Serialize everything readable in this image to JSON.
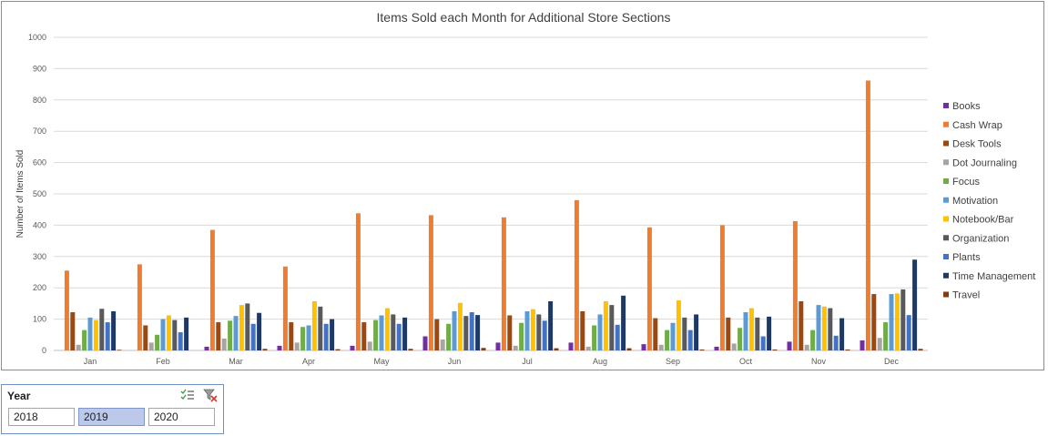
{
  "chart_data": {
    "type": "bar",
    "title": "Items Sold each Month for Additional Store Sections",
    "xlabel": "",
    "ylabel": "Number of Items Sold",
    "ylim": [
      0,
      1000
    ],
    "yticks": [
      0,
      100,
      200,
      300,
      400,
      500,
      600,
      700,
      800,
      900,
      1000
    ],
    "grid": true,
    "legend_position": "right",
    "categories": [
      "Jan",
      "Feb",
      "Mar",
      "Apr",
      "May",
      "Jun",
      "Jul",
      "Aug",
      "Sep",
      "Oct",
      "Nov",
      "Dec"
    ],
    "series": [
      {
        "name": "Books",
        "color": "#7030a0",
        "values": [
          0,
          0,
          12,
          15,
          15,
          45,
          25,
          25,
          20,
          12,
          28,
          32
        ]
      },
      {
        "name": "Cash Wrap",
        "color": "#ed7d31",
        "values": [
          255,
          275,
          385,
          268,
          438,
          432,
          425,
          480,
          393,
          400,
          413,
          862
        ]
      },
      {
        "name": "Desk Tools",
        "color": "#9e480e",
        "values": [
          122,
          80,
          90,
          90,
          90,
          100,
          112,
          125,
          103,
          105,
          157,
          180
        ]
      },
      {
        "name": "Dot Journaling",
        "color": "#a5a5a5",
        "values": [
          18,
          25,
          38,
          25,
          28,
          35,
          15,
          12,
          18,
          22,
          18,
          40
        ]
      },
      {
        "name": "Focus",
        "color": "#70ad47",
        "values": [
          65,
          50,
          95,
          75,
          97,
          85,
          88,
          80,
          65,
          72,
          65,
          90
        ]
      },
      {
        "name": "Motivation",
        "color": "#5b9bd5",
        "values": [
          105,
          100,
          110,
          80,
          112,
          125,
          125,
          115,
          88,
          122,
          145,
          180
        ]
      },
      {
        "name": "Notebook/Bar",
        "color": "#ffc000",
        "values": [
          97,
          112,
          145,
          157,
          135,
          152,
          132,
          157,
          160,
          135,
          140,
          182
        ]
      },
      {
        "name": "Organization",
        "color": "#595959",
        "values": [
          133,
          97,
          150,
          140,
          115,
          110,
          115,
          145,
          105,
          105,
          135,
          195
        ]
      },
      {
        "name": "Plants",
        "color": "#4472c4",
        "values": [
          90,
          58,
          85,
          85,
          85,
          122,
          95,
          82,
          65,
          45,
          47,
          113
        ]
      },
      {
        "name": "Time Management",
        "color": "#203864",
        "values": [
          125,
          105,
          120,
          100,
          105,
          113,
          157,
          175,
          115,
          108,
          103,
          290
        ]
      },
      {
        "name": "Travel",
        "color": "#843c0c",
        "values": [
          2,
          0,
          5,
          4,
          5,
          8,
          7,
          7,
          3,
          3,
          3,
          5
        ]
      }
    ]
  },
  "slicer": {
    "title": "Year",
    "multi_select_icon": "multi-select-icon",
    "clear_filter_icon": "clear-filter-icon",
    "items": [
      {
        "label": "2018",
        "selected": false
      },
      {
        "label": "2019",
        "selected": true
      },
      {
        "label": "2020",
        "selected": false
      }
    ]
  }
}
